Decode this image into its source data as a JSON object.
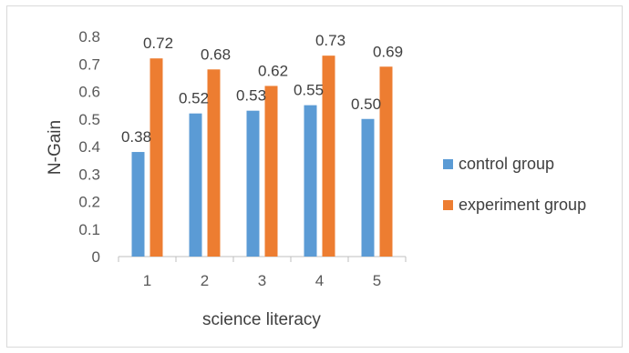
{
  "chart_data": {
    "type": "bar",
    "title": "",
    "xlabel": "science literacy",
    "ylabel": "N-Gain",
    "categories": [
      "1",
      "2",
      "3",
      "4",
      "5"
    ],
    "series": [
      {
        "name": "control group",
        "color": "#5b9bd5",
        "values": [
          0.38,
          0.52,
          0.53,
          0.55,
          0.5
        ],
        "labels": [
          "0.38",
          "0.52",
          "0.53",
          "0.55",
          "0.50"
        ]
      },
      {
        "name": "experiment group",
        "color": "#ed7d31",
        "values": [
          0.72,
          0.68,
          0.62,
          0.73,
          0.69
        ],
        "labels": [
          "0.72",
          "0.68",
          "0.62",
          "0.73",
          "0.69"
        ]
      }
    ],
    "ylim": [
      0,
      0.8
    ],
    "yticks": [
      "0",
      "0.1",
      "0.2",
      "0.3",
      "0.4",
      "0.5",
      "0.6",
      "0.7",
      "0.8"
    ],
    "grid": false,
    "legend_position": "right"
  }
}
